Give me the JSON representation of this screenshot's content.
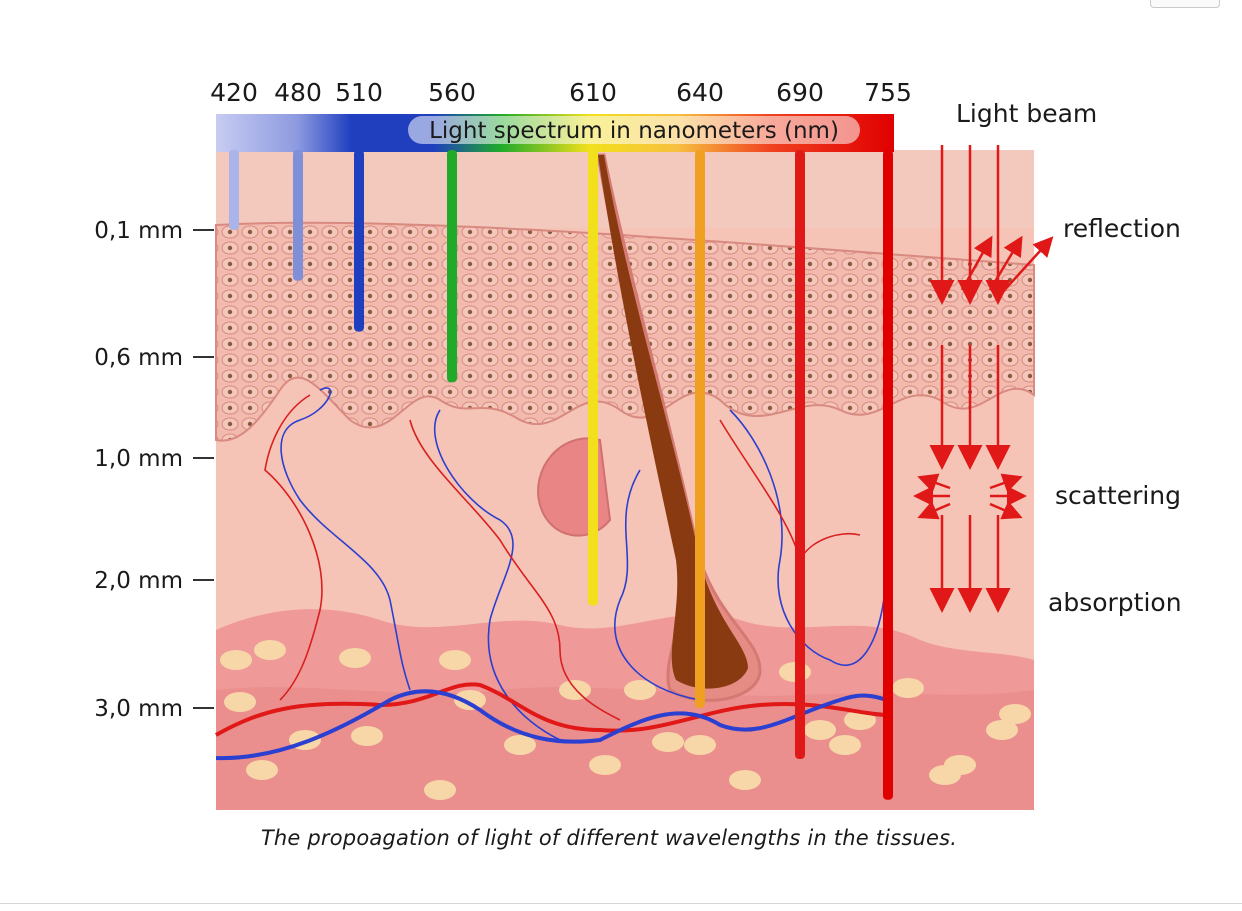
{
  "spectrum": {
    "title": "Light spectrum in nanometers (nm)",
    "wavelengths": [
      {
        "label": "420",
        "color": "#aab4e8",
        "depth_mm": 0.1
      },
      {
        "label": "480",
        "color": "#7f8fd8",
        "depth_mm": 0.3
      },
      {
        "label": "510",
        "color": "#1f3fbf",
        "depth_mm": 0.5
      },
      {
        "label": "560",
        "color": "#1faa2a",
        "depth_mm": 0.7
      },
      {
        "label": "610",
        "color": "#f2e01c",
        "depth_mm": 2.2
      },
      {
        "label": "640",
        "color": "#f0a020",
        "depth_mm": 3.0
      },
      {
        "label": "690",
        "color": "#e01818",
        "depth_mm": 3.5
      },
      {
        "label": "755",
        "color": "#e00000",
        "depth_mm": 3.9
      }
    ]
  },
  "depth_axis": [
    "0,1 mm",
    "0,6 mm",
    "1,0 mm",
    "2,0 mm",
    "3,0 mm"
  ],
  "side_labels": {
    "beam": "Light beam",
    "reflection": "reflection",
    "scattering": "scattering",
    "absorption": "absorption"
  },
  "caption": "The propoagation of light of different wavelengths in the tissues.",
  "colors": {
    "arrow": "#e01818",
    "skin_top": "#f3c9bd",
    "epidermis": "#f0b6aa",
    "dermis": "#f6c4b6",
    "fat": "#ef9a98",
    "fat_cell": "#f7d6a8",
    "artery": "#e01818",
    "vein": "#2b3fd0"
  }
}
